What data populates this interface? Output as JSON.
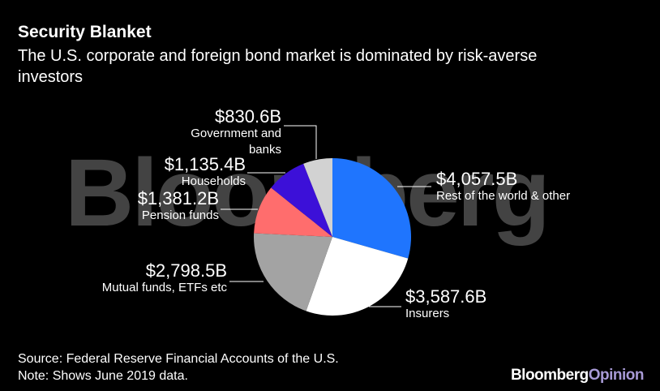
{
  "chart_data": {
    "type": "pie",
    "title": "Security Blanket",
    "subtitle": "The U.S. corporate and foreign bond market is dominated by risk-averse investors",
    "categories": [
      "Rest of the world & other",
      "Insurers",
      "Mutual funds, ETFs etc",
      "Pension funds",
      "Households",
      "Government and banks"
    ],
    "values": [
      4057.5,
      3587.6,
      2798.5,
      1381.2,
      1135.4,
      830.6
    ],
    "value_labels": [
      "$4,057.5B",
      "$3,587.6B",
      "$2,798.5B",
      "$1,381.2B",
      "$1,135.4B",
      "$830.6B"
    ],
    "colors": [
      "#1f75fe",
      "#ffffff",
      "#a3a3a3",
      "#ff6d6d",
      "#3c10d8",
      "#d2d2d2"
    ],
    "source": "Source: Federal Reserve Financial Accounts of the U.S.",
    "note": "Note: Shows June 2019 data.",
    "watermark": "Bloomberg",
    "brand": [
      "Bloomberg",
      "Opinion"
    ]
  }
}
